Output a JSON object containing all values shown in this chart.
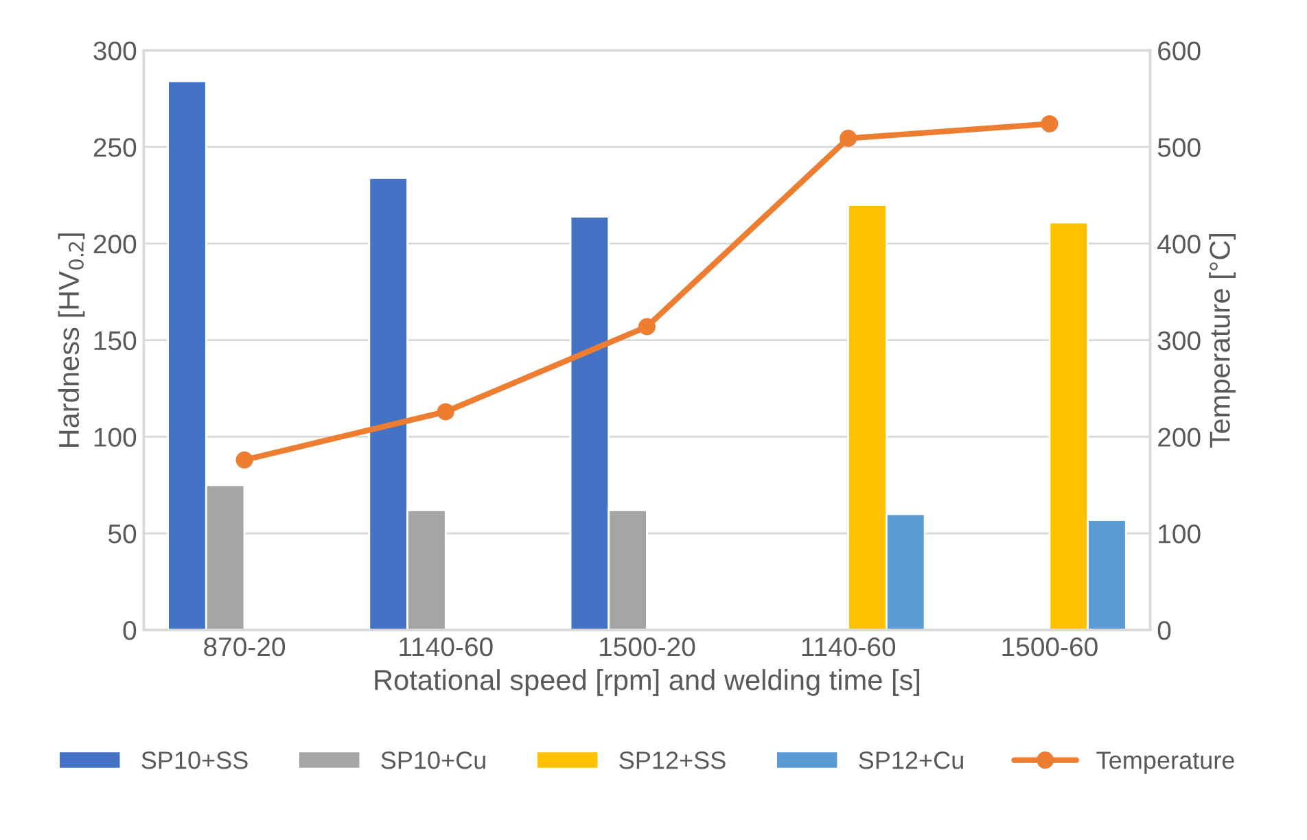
{
  "chart_data": {
    "type": "bar",
    "categories": [
      "870-20",
      "1140-60",
      "1500-20",
      "1140-60",
      "1500-60"
    ],
    "xlabel": "Rotational speed [rpm] and welding time [s]",
    "ylabel": "Hardness [HV$_{0.2}$]",
    "y2label": "Temperature [°C]",
    "series": [
      {
        "name": "SP10+SS",
        "color": "#4472c4",
        "values": [
          284,
          234,
          214,
          null,
          null
        ]
      },
      {
        "name": "SP10+Cu",
        "color": "#a5a5a5",
        "values": [
          75,
          62,
          62,
          null,
          null
        ]
      },
      {
        "name": "SP12+SS",
        "color": "#ffc000",
        "values": [
          null,
          null,
          null,
          220,
          211
        ]
      },
      {
        "name": "SP12+Cu",
        "color": "#5b9bd5",
        "values": [
          null,
          null,
          null,
          60,
          57
        ]
      },
      {
        "name": "Temperature",
        "color": "#ed7d31",
        "type": "line",
        "axis": "y2",
        "marker": "circle",
        "values": [
          176,
          226,
          314,
          509,
          524
        ]
      }
    ],
    "ylim": [
      0,
      300
    ],
    "yticks": [
      0,
      50,
      100,
      150,
      200,
      250,
      300
    ],
    "y2lim": [
      0,
      600
    ],
    "y2ticks": [
      0,
      100,
      200,
      300,
      400,
      500,
      600
    ],
    "grid": "y",
    "legend": "bottom"
  }
}
